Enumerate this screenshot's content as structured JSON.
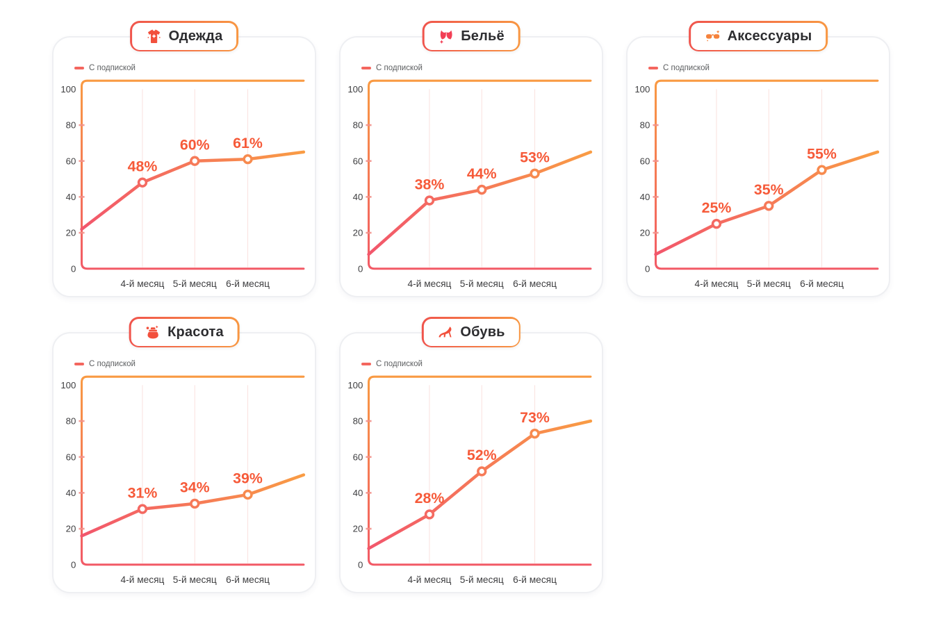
{
  "legend": {
    "label": "С подпиской"
  },
  "colors": {
    "line_gradient_start": "#F2566C",
    "line_gradient_end": "#F99C44",
    "frame_top": "#F99A43",
    "frame_bottom": "#F25A66",
    "point_label": "#F65A39",
    "axis_text": "#3E3E40",
    "legend_dash": "#F4665E",
    "grid_line": "#F8CEC9",
    "tick_mark": "#F2928B",
    "marker_fill": "#FFFFFF",
    "card_border": "#EEEFF2",
    "pill_gradient_start": "#F0544C",
    "pill_gradient_end": "#F89742",
    "icon_red": "#F2503C",
    "icon_pink": "#F23F55",
    "icon_orange": "#F5823C"
  },
  "chart_data": [
    {
      "type": "line",
      "title": "Одежда",
      "icon": "tshirt-icon",
      "categories": [
        "4-й месяц",
        "5-й месяц",
        "6-й месяц"
      ],
      "yticks": [
        0,
        20,
        40,
        60,
        80,
        100
      ],
      "ylim": [
        0,
        100
      ],
      "series": [
        {
          "name": "С подпиской",
          "values": [
            48,
            60,
            61
          ]
        }
      ],
      "point_labels": [
        "48%",
        "60%",
        "61%"
      ],
      "edge_start": 22,
      "edge_end": 65,
      "grid": "vertical-only",
      "legend_position": "top-left"
    },
    {
      "type": "line",
      "title": "Бельё",
      "icon": "bra-icon",
      "categories": [
        "4-й месяц",
        "5-й месяц",
        "6-й месяц"
      ],
      "yticks": [
        0,
        20,
        40,
        60,
        80,
        100
      ],
      "ylim": [
        0,
        100
      ],
      "series": [
        {
          "name": "С подпиской",
          "values": [
            38,
            44,
            53
          ]
        }
      ],
      "point_labels": [
        "38%",
        "44%",
        "53%"
      ],
      "edge_start": 8,
      "edge_end": 65,
      "grid": "vertical-only",
      "legend_position": "top-left"
    },
    {
      "type": "line",
      "title": "Аксессуары",
      "icon": "sunglasses-icon",
      "categories": [
        "4-й месяц",
        "5-й месяц",
        "6-й месяц"
      ],
      "yticks": [
        0,
        20,
        40,
        60,
        80,
        100
      ],
      "ylim": [
        0,
        100
      ],
      "series": [
        {
          "name": "С подпиской",
          "values": [
            25,
            35,
            55
          ]
        }
      ],
      "point_labels": [
        "25%",
        "35%",
        "55%"
      ],
      "edge_start": 8,
      "edge_end": 65,
      "grid": "vertical-only",
      "legend_position": "top-left"
    },
    {
      "type": "line",
      "title": "Красота",
      "icon": "cosmetics-icon",
      "categories": [
        "4-й месяц",
        "5-й месяц",
        "6-й месяц"
      ],
      "yticks": [
        0,
        20,
        40,
        60,
        80,
        100
      ],
      "ylim": [
        0,
        100
      ],
      "series": [
        {
          "name": "С подпиской",
          "values": [
            31,
            34,
            39
          ]
        }
      ],
      "point_labels": [
        "31%",
        "34%",
        "39%"
      ],
      "edge_start": 16,
      "edge_end": 50,
      "grid": "vertical-only",
      "legend_position": "top-left"
    },
    {
      "type": "line",
      "title": "Обувь",
      "icon": "high-heel-icon",
      "categories": [
        "4-й месяц",
        "5-й месяц",
        "6-й месяц"
      ],
      "yticks": [
        0,
        20,
        40,
        60,
        80,
        100
      ],
      "ylim": [
        0,
        100
      ],
      "series": [
        {
          "name": "С подпиской",
          "values": [
            28,
            52,
            73
          ]
        }
      ],
      "point_labels": [
        "28%",
        "52%",
        "73%"
      ],
      "edge_start": 9,
      "edge_end": 80,
      "grid": "vertical-only",
      "legend_position": "top-left"
    }
  ]
}
